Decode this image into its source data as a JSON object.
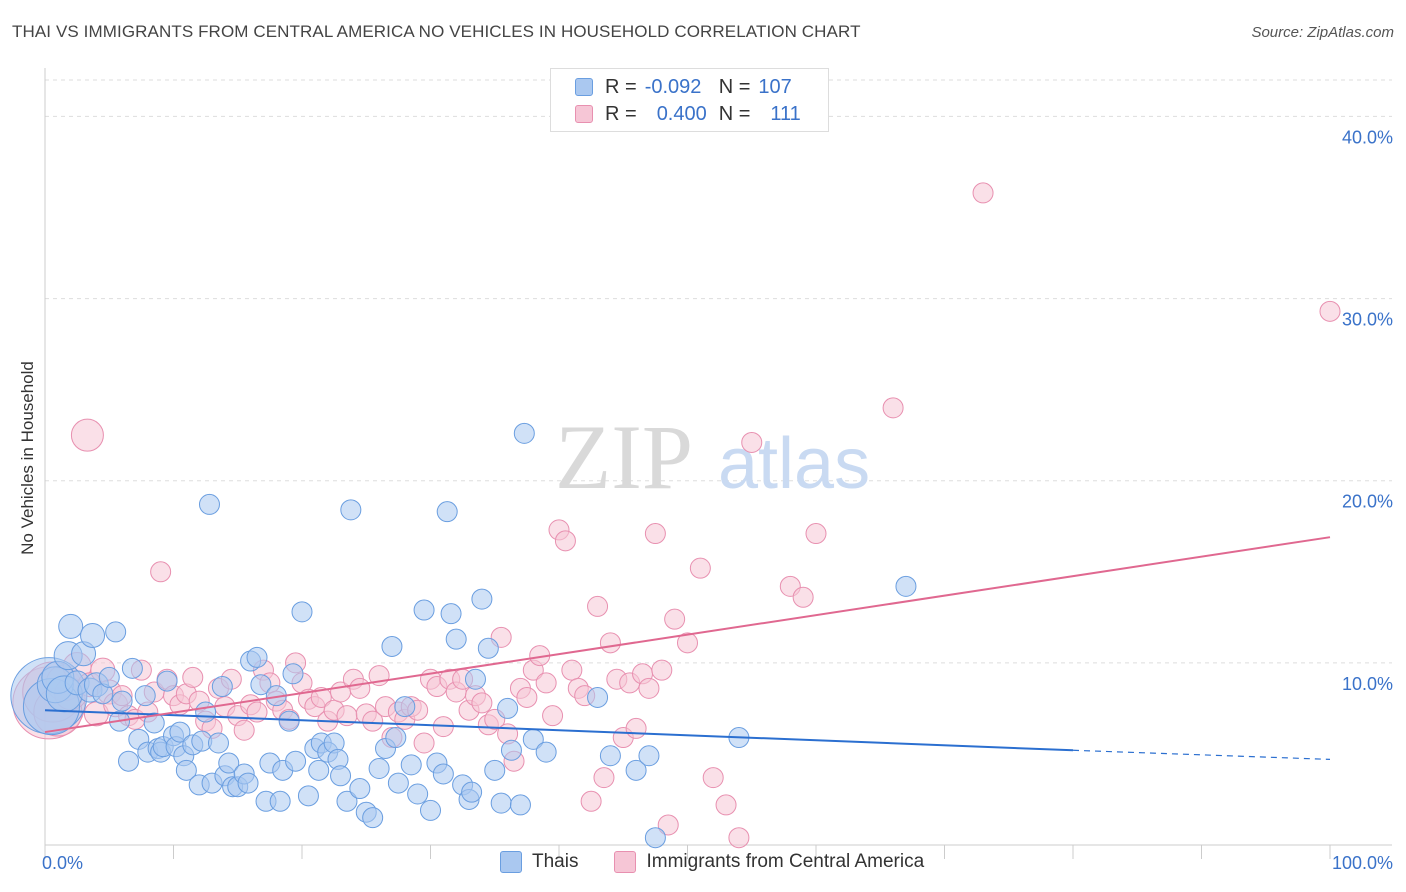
{
  "header": {
    "title": "THAI VS IMMIGRANTS FROM CENTRAL AMERICA NO VEHICLES IN HOUSEHOLD CORRELATION CHART",
    "source": "Source: ZipAtlas.com"
  },
  "legend": {
    "rows": [
      {
        "r_label": "R =",
        "r_value": "-0.092",
        "n_label": "N =",
        "n_value": "107"
      },
      {
        "r_label": "R =",
        "r_value": "0.400",
        "n_label": "N =",
        "n_value": "111"
      }
    ]
  },
  "bottom_legend": {
    "items": [
      {
        "label": "Thais"
      },
      {
        "label": "Immigrants from Central America"
      }
    ]
  },
  "watermark": {
    "zip": "ZIP",
    "atlas": "atlas"
  },
  "colors": {
    "blue_fill": "#aac8f0",
    "blue_stroke": "#6a9ee0",
    "blue_line": "#2b6fd0",
    "pink_fill": "#f6c6d6",
    "pink_stroke": "#e890b0",
    "pink_line": "#e06890",
    "tick_label": "#3a72c9"
  },
  "chart_data": {
    "type": "scatter",
    "title": "THAI VS IMMIGRANTS FROM CENTRAL AMERICA NO VEHICLES IN HOUSEHOLD CORRELATION CHART",
    "xlabel": "",
    "ylabel": "No Vehicles in Household",
    "xlim": [
      0,
      100
    ],
    "ylim": [
      0,
      40
    ],
    "x_ticks": [
      "0.0%",
      "100.0%"
    ],
    "y_ticks": [
      "10.0%",
      "20.0%",
      "30.0%",
      "40.0%"
    ],
    "y_tick_values": [
      10,
      20,
      30,
      40
    ],
    "grid": true,
    "legend_position": "top-center",
    "series": [
      {
        "name": "Thais",
        "r": -0.092,
        "n": 107,
        "trend": {
          "x0": 0,
          "y0": 7.4,
          "x1": 80,
          "y1": 5.2,
          "dashed_to_x": 100,
          "dashed_y": 4.7
        },
        "points": [
          [
            0.3,
            8.2
          ],
          [
            0.5,
            7.6
          ],
          [
            0.8,
            8.8
          ],
          [
            1,
            9.2
          ],
          [
            1.5,
            8.3
          ],
          [
            1.8,
            10.4
          ],
          [
            2,
            12
          ],
          [
            2.5,
            8.9
          ],
          [
            3,
            10.5
          ],
          [
            3.5,
            8.5
          ],
          [
            3.7,
            11.5
          ],
          [
            4,
            8.8
          ],
          [
            4.5,
            8.3
          ],
          [
            5,
            9.2
          ],
          [
            5.5,
            11.7
          ],
          [
            5.8,
            6.8
          ],
          [
            6,
            7.9
          ],
          [
            6.5,
            4.6
          ],
          [
            6.8,
            9.7
          ],
          [
            7.3,
            5.8
          ],
          [
            7.8,
            8.2
          ],
          [
            8,
            5.1
          ],
          [
            8.5,
            6.7
          ],
          [
            8.8,
            5.3
          ],
          [
            9,
            5.1
          ],
          [
            9.2,
            5.4
          ],
          [
            9.5,
            9
          ],
          [
            10,
            6
          ],
          [
            10.2,
            5.4
          ],
          [
            10.5,
            6.2
          ],
          [
            10.8,
            4.9
          ],
          [
            11,
            4.1
          ],
          [
            11.5,
            5.5
          ],
          [
            12,
            3.3
          ],
          [
            12.2,
            5.7
          ],
          [
            12.5,
            7.3
          ],
          [
            12.8,
            18.7
          ],
          [
            13,
            3.4
          ],
          [
            13.5,
            5.6
          ],
          [
            13.8,
            8.7
          ],
          [
            14,
            3.8
          ],
          [
            14.3,
            4.5
          ],
          [
            14.6,
            3.2
          ],
          [
            15,
            3.2
          ],
          [
            15.5,
            3.9
          ],
          [
            15.8,
            3.4
          ],
          [
            16,
            10.1
          ],
          [
            16.5,
            10.3
          ],
          [
            16.8,
            8.8
          ],
          [
            17.2,
            2.4
          ],
          [
            17.5,
            4.5
          ],
          [
            18,
            8.2
          ],
          [
            18.3,
            2.4
          ],
          [
            18.5,
            4.1
          ],
          [
            19,
            6.8
          ],
          [
            19.3,
            9.4
          ],
          [
            19.5,
            4.6
          ],
          [
            20,
            12.8
          ],
          [
            20.5,
            2.7
          ],
          [
            21,
            5.3
          ],
          [
            21.3,
            4.1
          ],
          [
            21.5,
            5.6
          ],
          [
            22,
            5.1
          ],
          [
            22.5,
            5.6
          ],
          [
            22.8,
            4.7
          ],
          [
            23,
            3.8
          ],
          [
            23.5,
            2.4
          ],
          [
            23.8,
            18.4
          ],
          [
            24.5,
            3.1
          ],
          [
            25,
            1.8
          ],
          [
            25.5,
            1.5
          ],
          [
            26,
            4.2
          ],
          [
            26.5,
            5.3
          ],
          [
            27,
            10.9
          ],
          [
            27.3,
            5.9
          ],
          [
            27.5,
            3.4
          ],
          [
            28,
            7.6
          ],
          [
            28.5,
            4.4
          ],
          [
            29,
            2.8
          ],
          [
            29.5,
            12.9
          ],
          [
            30,
            1.9
          ],
          [
            30.5,
            4.5
          ],
          [
            31,
            3.9
          ],
          [
            31.3,
            18.3
          ],
          [
            31.6,
            12.7
          ],
          [
            32,
            11.3
          ],
          [
            32.5,
            3.3
          ],
          [
            33,
            2.5
          ],
          [
            33.2,
            2.9
          ],
          [
            33.5,
            9.1
          ],
          [
            34,
            13.5
          ],
          [
            34.5,
            10.8
          ],
          [
            35,
            4.1
          ],
          [
            35.5,
            2.3
          ],
          [
            36,
            7.5
          ],
          [
            36.3,
            5.2
          ],
          [
            37,
            2.2
          ],
          [
            37.3,
            22.6
          ],
          [
            38,
            5.8
          ],
          [
            39,
            5.1
          ],
          [
            43,
            8.1
          ],
          [
            44,
            4.9
          ],
          [
            46,
            4.1
          ],
          [
            47,
            4.9
          ],
          [
            47.5,
            0.4
          ],
          [
            54,
            5.9
          ],
          [
            67,
            14.2
          ]
        ],
        "sizes": [
          38,
          28,
          18,
          16,
          18,
          14,
          12,
          12,
          12,
          12,
          12,
          12,
          10,
          10,
          10,
          10,
          10,
          10,
          10,
          10,
          10,
          10,
          10,
          10,
          10,
          10,
          10,
          10,
          10,
          10,
          10,
          10,
          10,
          10,
          10,
          10,
          10,
          10,
          10,
          10,
          10,
          10,
          10,
          10,
          10,
          10,
          10,
          10,
          10,
          10,
          10,
          10,
          10,
          10,
          10,
          10,
          10,
          10,
          10,
          10,
          10,
          10,
          10,
          10,
          10,
          10,
          10,
          10,
          10,
          10,
          10,
          10,
          10,
          10,
          10,
          10,
          10,
          10,
          10,
          10,
          10,
          10,
          10,
          10,
          10,
          10,
          10,
          10,
          10,
          10,
          10,
          10,
          10,
          10,
          10,
          10,
          10,
          10,
          10,
          10,
          10,
          10,
          10,
          10,
          10,
          10,
          10
        ]
      },
      {
        "name": "Immigrants from Central America",
        "r": 0.4,
        "n": 111,
        "trend": {
          "x0": 0,
          "y0": 6.2,
          "x1": 100,
          "y1": 16.9
        },
        "points": [
          [
            0.3,
            7.8
          ],
          [
            0.6,
            8.4
          ],
          [
            1,
            7.3
          ],
          [
            1.5,
            8.9
          ],
          [
            2,
            8.3
          ],
          [
            2.5,
            9.8
          ],
          [
            3.3,
            22.5
          ],
          [
            3.5,
            8.8
          ],
          [
            4,
            7.2
          ],
          [
            4.5,
            9.6
          ],
          [
            5,
            8.4
          ],
          [
            5.5,
            7.7
          ],
          [
            6,
            8.2
          ],
          [
            6.5,
            7.1
          ],
          [
            7,
            6.9
          ],
          [
            7.5,
            9.6
          ],
          [
            8,
            7.3
          ],
          [
            8.5,
            8.4
          ],
          [
            9,
            15
          ],
          [
            9.5,
            9.1
          ],
          [
            10,
            8.2
          ],
          [
            10.5,
            7.7
          ],
          [
            11,
            8.3
          ],
          [
            11.5,
            9.2
          ],
          [
            12,
            7.9
          ],
          [
            12.5,
            6.8
          ],
          [
            13,
            6.4
          ],
          [
            13.5,
            8.6
          ],
          [
            14,
            7.6
          ],
          [
            14.5,
            9.1
          ],
          [
            15,
            7.1
          ],
          [
            15.5,
            6.3
          ],
          [
            16,
            7.7
          ],
          [
            16.5,
            7.3
          ],
          [
            17,
            9.6
          ],
          [
            17.5,
            8.9
          ],
          [
            18,
            7.9
          ],
          [
            18.5,
            7.4
          ],
          [
            19,
            6.9
          ],
          [
            19.5,
            10
          ],
          [
            20,
            8.9
          ],
          [
            20.5,
            8
          ],
          [
            21,
            7.6
          ],
          [
            21.5,
            8.1
          ],
          [
            22,
            6.8
          ],
          [
            22.5,
            7.4
          ],
          [
            23,
            8.4
          ],
          [
            23.5,
            7.1
          ],
          [
            24,
            9.1
          ],
          [
            24.5,
            8.6
          ],
          [
            25,
            7.2
          ],
          [
            25.5,
            6.8
          ],
          [
            26,
            9.3
          ],
          [
            26.5,
            7.6
          ],
          [
            27,
            5.9
          ],
          [
            27.5,
            7.3
          ],
          [
            28,
            6.9
          ],
          [
            28.5,
            7.6
          ],
          [
            29,
            7.4
          ],
          [
            29.5,
            5.6
          ],
          [
            30,
            9.1
          ],
          [
            30.5,
            8.7
          ],
          [
            31,
            6.5
          ],
          [
            31.5,
            9.1
          ],
          [
            32,
            8.4
          ],
          [
            32.5,
            9.1
          ],
          [
            33,
            7.4
          ],
          [
            33.5,
            8.2
          ],
          [
            34,
            7.8
          ],
          [
            34.5,
            6.6
          ],
          [
            35,
            6.9
          ],
          [
            35.5,
            11.4
          ],
          [
            36,
            6.1
          ],
          [
            36.5,
            4.6
          ],
          [
            37,
            8.6
          ],
          [
            37.5,
            8.1
          ],
          [
            38,
            9.6
          ],
          [
            38.5,
            10.4
          ],
          [
            39,
            8.9
          ],
          [
            39.5,
            7.1
          ],
          [
            40,
            17.3
          ],
          [
            40.5,
            16.7
          ],
          [
            41,
            9.6
          ],
          [
            41.5,
            8.6
          ],
          [
            42,
            8.2
          ],
          [
            42.5,
            2.4
          ],
          [
            43,
            13.1
          ],
          [
            43.5,
            3.7
          ],
          [
            44,
            11.1
          ],
          [
            44.5,
            9.1
          ],
          [
            45,
            5.9
          ],
          [
            45.5,
            8.9
          ],
          [
            46,
            6.4
          ],
          [
            46.5,
            9.4
          ],
          [
            47,
            8.6
          ],
          [
            47.5,
            17.1
          ],
          [
            48,
            9.6
          ],
          [
            48.5,
            1.1
          ],
          [
            49,
            12.4
          ],
          [
            50,
            11.1
          ],
          [
            51,
            15.2
          ],
          [
            52,
            3.7
          ],
          [
            53,
            2.2
          ],
          [
            54,
            0.4
          ],
          [
            55,
            22.1
          ],
          [
            58,
            14.2
          ],
          [
            59,
            13.6
          ],
          [
            60,
            17.1
          ],
          [
            66,
            24
          ],
          [
            73,
            35.8
          ],
          [
            100,
            29.3
          ]
        ],
        "sizes": [
          36,
          30,
          24,
          18,
          16,
          14,
          16,
          12,
          12,
          12,
          12,
          12,
          10,
          10,
          10,
          10,
          10,
          10,
          10,
          10,
          10,
          10,
          10,
          10,
          10,
          10,
          10,
          10,
          10,
          10,
          10,
          10,
          10,
          10,
          10,
          10,
          10,
          10,
          10,
          10,
          10,
          10,
          10,
          10,
          10,
          10,
          10,
          10,
          10,
          10,
          10,
          10,
          10,
          10,
          10,
          10,
          10,
          10,
          10,
          10,
          10,
          10,
          10,
          10,
          10,
          10,
          10,
          10,
          10,
          10,
          10,
          10,
          10,
          10,
          10,
          10,
          10,
          10,
          10,
          10,
          10,
          10,
          10,
          10,
          10,
          10,
          10,
          10,
          10,
          10,
          10,
          10,
          10,
          10,
          10,
          10,
          10,
          10,
          10,
          10,
          10,
          10,
          10,
          10,
          10,
          10,
          10,
          10,
          10,
          10,
          10
        ]
      }
    ]
  }
}
